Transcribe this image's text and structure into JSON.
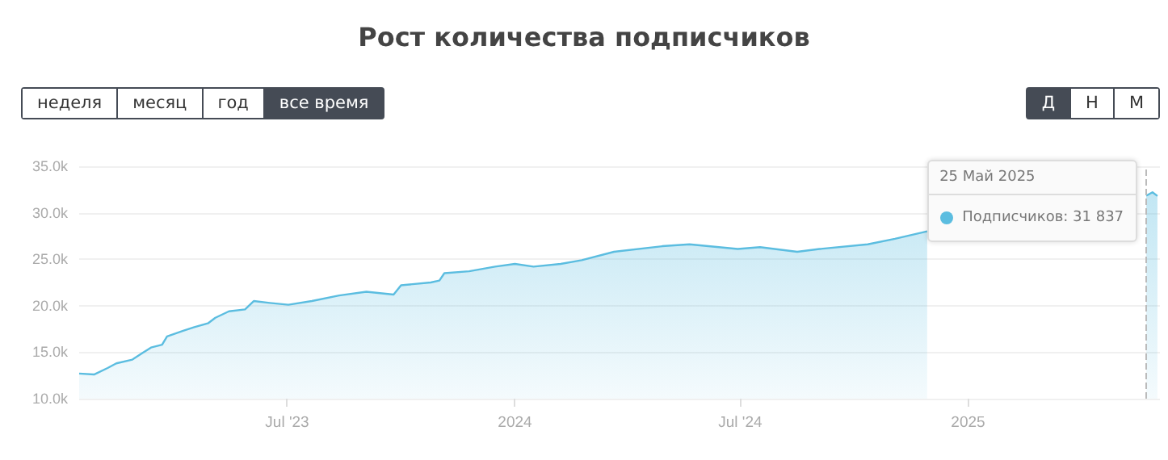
{
  "chart_data": {
    "type": "area",
    "title": "Рост количества подписчиков",
    "x": [
      "2023-01-14",
      "2023-01-26",
      "2023-02-06",
      "2023-02-13",
      "2023-02-26",
      "2023-03-06",
      "2023-03-13",
      "2023-03-22",
      "2023-03-26",
      "2023-04-08",
      "2023-04-17",
      "2023-04-28",
      "2023-05-04",
      "2023-05-15",
      "2023-05-28",
      "2023-06-04",
      "2023-06-17",
      "2023-07-02",
      "2023-07-21",
      "2023-08-12",
      "2023-09-03",
      "2023-09-25",
      "2023-10-01",
      "2023-10-25",
      "2023-11-01",
      "2023-11-05",
      "2023-11-25",
      "2023-12-16",
      "2024-01-01",
      "2024-01-16",
      "2024-02-07",
      "2024-02-24",
      "2024-03-21",
      "2024-04-29",
      "2024-05-21",
      "2024-06-29",
      "2024-07-17",
      "2024-08-16",
      "2024-09-03",
      "2024-10-12",
      "2024-11-03",
      "2024-11-29",
      "2024-12-25",
      "2025-02-06",
      "2025-03-22",
      "2025-05-04",
      "2025-05-25",
      "2025-05-30",
      "2025-06-03"
    ],
    "values": [
      12700,
      12600,
      13300,
      13800,
      14200,
      14900,
      15500,
      15800,
      16700,
      17300,
      17700,
      18100,
      18700,
      19400,
      19600,
      20500,
      20300,
      20100,
      20500,
      21100,
      21500,
      21200,
      22200,
      22500,
      22700,
      23500,
      23700,
      24200,
      24500,
      24200,
      24500,
      24900,
      25800,
      26400,
      26600,
      26100,
      26300,
      25800,
      26100,
      26600,
      27200,
      28000,
      null,
      null,
      null,
      null,
      31837,
      32200,
      31800
    ],
    "color": "#5bbde0",
    "xlim": [
      "2023-01-14",
      "2025-06-05"
    ],
    "xticks": [
      {
        "value": "2023-07-01",
        "label": "Jul '23"
      },
      {
        "value": "2024-01-01",
        "label": "2024"
      },
      {
        "value": "2024-07-01",
        "label": "Jul '24"
      },
      {
        "value": "2025-01-01",
        "label": "2025"
      }
    ],
    "ylim": [
      10000,
      35000
    ],
    "yticks": [
      {
        "value": 10000,
        "label": "10.0k"
      },
      {
        "value": 15000,
        "label": "15.0k"
      },
      {
        "value": 20000,
        "label": "20.0k"
      },
      {
        "value": 25000,
        "label": "25.0k"
      },
      {
        "value": 30000,
        "label": "30.0k"
      },
      {
        "value": 35000,
        "label": "35.0k"
      }
    ],
    "grid": "y",
    "marker": "none",
    "ref_lines": [
      {
        "axis": "x",
        "value": "2025-05-25",
        "color": "#bbbbbb",
        "line_style": "dashed"
      }
    ],
    "annotations": [
      "неделя",
      "месяц",
      "год",
      "все время",
      "Д",
      "Н",
      "М",
      {
        "text": "25 Май 2025",
        "x": "2025-05-25",
        "y": 31837
      },
      {
        "text": "Подписчиков: 31 837",
        "x": "2025-05-25",
        "y": 31837
      }
    ]
  }
}
